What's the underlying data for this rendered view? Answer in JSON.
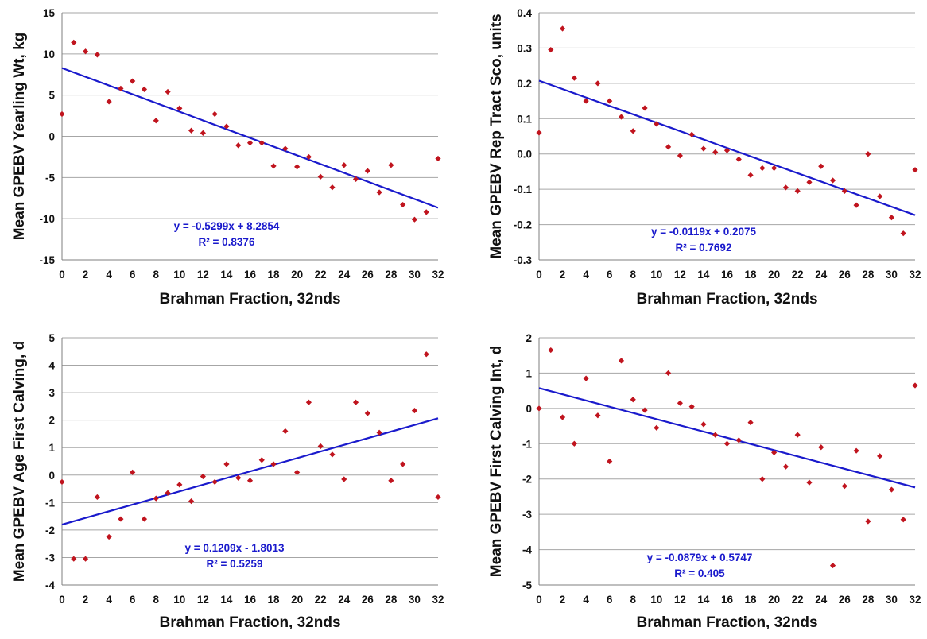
{
  "chart_data": [
    {
      "type": "scatter",
      "xlabel": "Brahman Fraction, 32nds",
      "ylabel": "Mean GPEBV Yearling Wt, kg",
      "xlim": [
        0,
        32
      ],
      "ylim": [
        -15,
        15
      ],
      "x_ticks": [
        0,
        2,
        4,
        6,
        8,
        10,
        12,
        14,
        16,
        18,
        20,
        22,
        24,
        26,
        28,
        30,
        32
      ],
      "y_ticks": [
        -15,
        -10,
        -5,
        0,
        5,
        10,
        15
      ],
      "y_tick_labels": [
        "-15",
        "-10",
        "-5",
        "0",
        "5",
        "10",
        "15"
      ],
      "grid": "horizontal",
      "x": [
        0,
        1,
        2,
        3,
        4,
        5,
        6,
        7,
        8,
        9,
        10,
        11,
        12,
        13,
        14,
        15,
        16,
        17,
        18,
        19,
        20,
        21,
        22,
        23,
        24,
        25,
        26,
        27,
        28,
        29,
        30,
        31,
        32
      ],
      "y": [
        2.7,
        11.4,
        10.3,
        9.9,
        4.2,
        5.8,
        6.7,
        5.7,
        1.9,
        5.4,
        3.4,
        0.7,
        0.4,
        2.7,
        1.2,
        -1.1,
        -0.8,
        -0.8,
        -3.6,
        -1.5,
        -3.7,
        -2.5,
        -4.9,
        -6.2,
        -3.5,
        -5.2,
        -4.2,
        -6.8,
        -3.5,
        -8.3,
        -10.1,
        -9.2,
        -2.7
      ],
      "trendline": {
        "slope": -0.5299,
        "intercept": 8.2854
      },
      "equation": "y = -0.5299x + 8.2854",
      "r2": "R² = 0.8376",
      "marker_color": "#c0141e",
      "line_color": "#1a1acc"
    },
    {
      "type": "scatter",
      "xlabel": "Brahman Fraction, 32nds",
      "ylabel": "Mean GPEBV Rep Tract Sco, units",
      "xlim": [
        0,
        32
      ],
      "ylim": [
        -0.3,
        0.4
      ],
      "x_ticks": [
        0,
        2,
        4,
        6,
        8,
        10,
        12,
        14,
        16,
        18,
        20,
        22,
        24,
        26,
        28,
        30,
        32
      ],
      "y_ticks": [
        -0.3,
        -0.2,
        -0.1,
        0,
        0.1,
        0.2,
        0.3,
        0.4
      ],
      "y_tick_labels": [
        "-0.3",
        "-0.2",
        "-0.1",
        "0.0",
        "0.1",
        "0.2",
        "0.3",
        "0.4"
      ],
      "grid": "horizontal",
      "x": [
        0,
        1,
        2,
        3,
        4,
        5,
        6,
        7,
        8,
        9,
        10,
        11,
        12,
        13,
        14,
        15,
        16,
        17,
        18,
        19,
        20,
        21,
        22,
        23,
        24,
        25,
        26,
        27,
        28,
        29,
        30,
        31,
        32
      ],
      "y": [
        0.06,
        0.295,
        0.355,
        0.215,
        0.15,
        0.2,
        0.15,
        0.105,
        0.065,
        0.13,
        0.085,
        0.02,
        -0.005,
        0.055,
        0.015,
        0.005,
        0.01,
        -0.015,
        -0.06,
        -0.04,
        -0.04,
        -0.095,
        -0.105,
        -0.08,
        -0.035,
        -0.075,
        -0.105,
        -0.145,
        0,
        -0.12,
        -0.18,
        -0.225,
        -0.045
      ],
      "trendline": {
        "slope": -0.0119,
        "intercept": 0.2075
      },
      "equation": "y = -0.0119x + 0.2075",
      "r2": "R² = 0.7692",
      "marker_color": "#c0141e",
      "line_color": "#1a1acc"
    },
    {
      "type": "scatter",
      "xlabel": "Brahman Fraction, 32nds",
      "ylabel": "Mean GPEBV Age First Calving, d",
      "xlim": [
        0,
        32
      ],
      "ylim": [
        -4,
        5
      ],
      "x_ticks": [
        0,
        2,
        4,
        6,
        8,
        10,
        12,
        14,
        16,
        18,
        20,
        22,
        24,
        26,
        28,
        30,
        32
      ],
      "y_ticks": [
        -4,
        -3,
        -2,
        -1,
        0,
        1,
        2,
        3,
        4,
        5
      ],
      "y_tick_labels": [
        "-4",
        "-3",
        "-2",
        "-1",
        "0",
        "1",
        "2",
        "3",
        "4",
        "5"
      ],
      "grid": "horizontal",
      "x": [
        0,
        1,
        2,
        3,
        4,
        5,
        6,
        7,
        8,
        9,
        10,
        11,
        12,
        13,
        14,
        15,
        16,
        17,
        18,
        19,
        20,
        21,
        22,
        23,
        24,
        25,
        26,
        27,
        28,
        29,
        30,
        31,
        32
      ],
      "y": [
        -0.25,
        -3.05,
        -3.05,
        -0.8,
        -2.25,
        -1.6,
        0.1,
        -1.6,
        -0.85,
        -0.65,
        -0.35,
        -0.95,
        -0.05,
        -0.25,
        0.4,
        -0.1,
        -0.2,
        0.55,
        0.4,
        1.6,
        0.1,
        2.65,
        1.05,
        0.75,
        -0.15,
        2.65,
        2.25,
        1.55,
        -0.2,
        0.4,
        2.35,
        4.4,
        -0.8
      ],
      "trendline": {
        "slope": 0.1209,
        "intercept": -1.8013
      },
      "equation": "y = 0.1209x - 1.8013",
      "r2": "R² = 0.5259",
      "marker_color": "#c0141e",
      "line_color": "#1a1acc"
    },
    {
      "type": "scatter",
      "xlabel": "Brahman Fraction, 32nds",
      "ylabel": "Mean GPEBV First Calving Int, d",
      "xlim": [
        0,
        32
      ],
      "ylim": [
        -5,
        2
      ],
      "x_ticks": [
        0,
        2,
        4,
        6,
        8,
        10,
        12,
        14,
        16,
        18,
        20,
        22,
        24,
        26,
        28,
        30,
        32
      ],
      "y_ticks": [
        -5,
        -4,
        -3,
        -2,
        -1,
        0,
        1,
        2
      ],
      "y_tick_labels": [
        "-5",
        "-4",
        "-3",
        "-2",
        "-1",
        "0",
        "1",
        "2"
      ],
      "grid": "horizontal",
      "x": [
        0,
        1,
        2,
        3,
        4,
        5,
        6,
        7,
        8,
        9,
        10,
        11,
        12,
        13,
        14,
        15,
        16,
        17,
        18,
        19,
        20,
        21,
        22,
        23,
        24,
        25,
        26,
        27,
        28,
        29,
        30,
        31,
        32
      ],
      "y": [
        0,
        1.65,
        -0.25,
        -1,
        0.85,
        -0.2,
        -1.5,
        1.35,
        0.25,
        -0.05,
        -0.55,
        1,
        0.15,
        0.05,
        -0.45,
        -0.75,
        -1,
        -0.9,
        -0.4,
        -2,
        -1.25,
        -1.65,
        -0.75,
        -2.1,
        -1.1,
        -4.45,
        -2.2,
        -1.2,
        -3.2,
        -1.35,
        -2.3,
        -3.15,
        0.65
      ],
      "trendline": {
        "slope": -0.0879,
        "intercept": 0.5747
      },
      "equation": "y = -0.0879x + 0.5747",
      "r2": "R² = 0.405",
      "marker_color": "#c0141e",
      "line_color": "#1a1acc"
    }
  ]
}
